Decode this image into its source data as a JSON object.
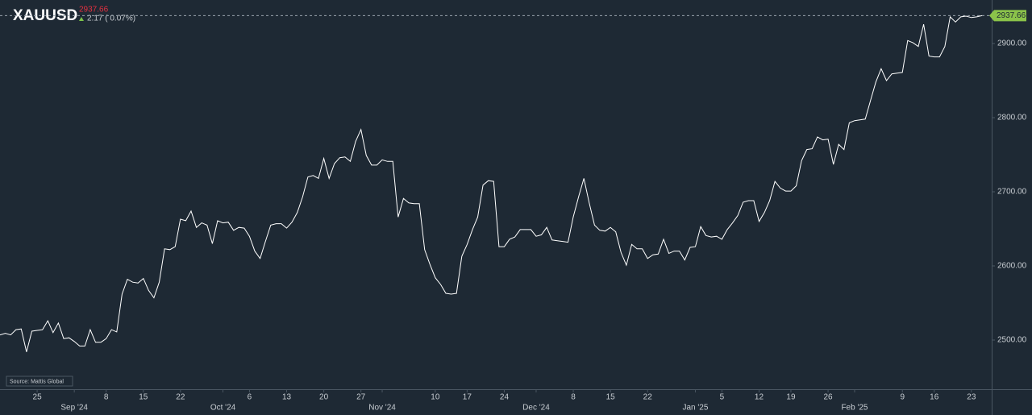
{
  "chart_data": {
    "type": "line",
    "title": "XAUUSD",
    "change_label": "2.17 ( 0.07%)",
    "source": "Source: Mattis Global",
    "color": "#ffffff",
    "categories": [
      null,
      null,
      null,
      null,
      null,
      null,
      null,
      "25",
      null,
      null,
      null,
      null,
      null,
      null,
      "Sep '24",
      null,
      null,
      null,
      null,
      null,
      "8",
      null,
      null,
      null,
      null,
      null,
      null,
      "15",
      null,
      null,
      null,
      null,
      null,
      null,
      "22",
      null,
      null,
      null,
      null,
      null,
      null,
      null,
      "Oct '24",
      null,
      null,
      null,
      null,
      "6",
      null,
      null,
      null,
      null,
      null,
      null,
      "13",
      null,
      null,
      null,
      null,
      null,
      null,
      "20",
      null,
      null,
      null,
      null,
      null,
      null,
      "27",
      null,
      null,
      null,
      "Nov '24",
      null,
      null,
      null,
      null,
      null,
      null,
      null,
      null,
      null,
      "10",
      null,
      null,
      null,
      null,
      null,
      "17",
      null,
      null,
      null,
      null,
      null,
      null,
      "24",
      null,
      null,
      null,
      null,
      null,
      "Dec '24",
      null,
      null,
      null,
      null,
      null,
      null,
      "8",
      null,
      null,
      null,
      null,
      null,
      null,
      "15",
      null,
      null,
      null,
      null,
      null,
      null,
      "22",
      null,
      null,
      null,
      null,
      null,
      null,
      null,
      null,
      "Jan '25",
      null,
      null,
      null,
      null,
      "5",
      null,
      null,
      null,
      null,
      null,
      null,
      "12",
      null,
      null,
      null,
      null,
      null,
      "19",
      null,
      null,
      null,
      null,
      null,
      null,
      "26",
      null,
      null,
      null,
      null,
      "Feb '25",
      null,
      null,
      null,
      null,
      null,
      null,
      null,
      null,
      "9",
      null,
      null,
      null,
      null,
      null,
      "16",
      null,
      null,
      null,
      null,
      null,
      null,
      "23",
      null,
      null
    ],
    "values": [
      2507,
      2509,
      2507,
      2514,
      2515,
      2484,
      2512,
      2513,
      2514,
      2526,
      2510,
      2523,
      2502,
      2503,
      2498,
      2492,
      2492,
      2514,
      2497,
      2497,
      2502,
      2514,
      2511,
      2562,
      2582,
      2578,
      2577,
      2583,
      2567,
      2557,
      2578,
      2623,
      2622,
      2626,
      2663,
      2661,
      2674,
      2652,
      2658,
      2655,
      2630,
      2661,
      2658,
      2659,
      2648,
      2652,
      2651,
      2640,
      2620,
      2610,
      2633,
      2655,
      2657,
      2657,
      2651,
      2659,
      2672,
      2693,
      2720,
      2722,
      2718,
      2745,
      2718,
      2738,
      2746,
      2747,
      2741,
      2768,
      2784,
      2749,
      2736,
      2736,
      2743,
      2741,
      2741,
      2666,
      2691,
      2685,
      2684,
      2684,
      2622,
      2602,
      2584,
      2575,
      2563,
      2562,
      2563,
      2613,
      2629,
      2649,
      2666,
      2709,
      2715,
      2714,
      2626,
      2626,
      2636,
      2639,
      2649,
      2649,
      2649,
      2640,
      2642,
      2652,
      2635,
      2634,
      2633,
      2632,
      2666,
      2693,
      2718,
      2685,
      2655,
      2648,
      2647,
      2652,
      2646,
      2618,
      2601,
      2629,
      2623,
      2623,
      2610,
      2615,
      2616,
      2636,
      2617,
      2620,
      2620,
      2608,
      2625,
      2626,
      2653,
      2641,
      2639,
      2640,
      2636,
      2649,
      2658,
      2668,
      2686,
      2688,
      2688,
      2660,
      2672,
      2688,
      2714,
      2705,
      2701,
      2701,
      2708,
      2742,
      2757,
      2758,
      2774,
      2770,
      2771,
      2737,
      2764,
      2757,
      2793,
      2796,
      2797,
      2798,
      2823,
      2848,
      2866,
      2850,
      2859,
      2860,
      2861,
      2904,
      2901,
      2896,
      2926,
      2883,
      2882,
      2882,
      2896,
      2936,
      2929,
      2936,
      2937,
      2935,
      2936,
      2937.66
    ],
    "ylim": [
      2433.7,
      2958.7
    ],
    "yticks": [
      {
        "value": 2500,
        "label": "2500.00"
      },
      {
        "value": 2600,
        "label": "2600.00"
      },
      {
        "value": 2700,
        "label": "2700.00"
      },
      {
        "value": 2800,
        "label": "2800.00"
      },
      {
        "value": 2900,
        "label": "2900.00"
      }
    ]
  }
}
